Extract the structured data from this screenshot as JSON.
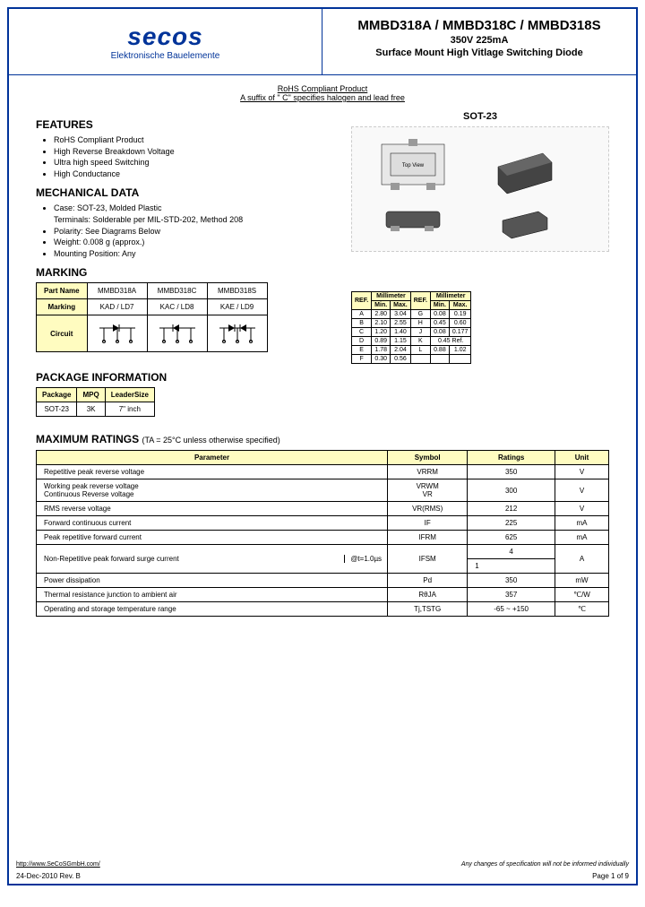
{
  "logo": {
    "name": "secos",
    "sub": "Elektronische Bauelemente"
  },
  "title": {
    "main": "MMBD318A / MMBD318C / MMBD318S",
    "sub1": "350V 225mA",
    "sub2": "Surface Mount High Vitlage Switching Diode"
  },
  "rohs": {
    "line1": "RoHS Compliant Product",
    "line2": "A suffix of \" C\" specifies halogen and lead free"
  },
  "features": {
    "title": "FEATURES",
    "items": [
      "RoHS Compliant Product",
      "High Reverse Breakdown Voltage",
      "Ultra high speed Switching",
      "High Conductance"
    ]
  },
  "mechanical": {
    "title": "MECHANICAL DATA",
    "items": [
      "Case: SOT-23, Molded Plastic\nTerminals: Solderable per MIL-STD-202, Method 208",
      "Polarity: See Diagrams Below",
      "Weight: 0.008 g (approx.)",
      "Mounting Position: Any"
    ]
  },
  "package_label": "SOT-23",
  "marking": {
    "title": "MARKING",
    "headers": [
      "Part Name",
      "MMBD318A",
      "MMBD318C",
      "MMBD318S"
    ],
    "row_marking": [
      "Marking",
      "KAD / LD7",
      "KAC / LD8",
      "KAE / LD9"
    ],
    "row_circuit": "Circuit"
  },
  "dimensions": {
    "headers": [
      "REF.",
      "Millimeter",
      "REF.",
      "Millimeter"
    ],
    "subheaders": [
      "",
      "Min.",
      "Max.",
      "",
      "Min.",
      "Max."
    ],
    "rows": [
      [
        "A",
        "2.80",
        "3.04",
        "G",
        "0.08",
        "0.19"
      ],
      [
        "B",
        "2.10",
        "2.55",
        "H",
        "0.45",
        "0.60"
      ],
      [
        "C",
        "1.20",
        "1.40",
        "J",
        "0.08",
        "0.177"
      ],
      [
        "D",
        "0.89",
        "1.15",
        "K",
        "0.45 Ref.",
        ""
      ],
      [
        "E",
        "1.78",
        "2.04",
        "L",
        "0.88",
        "1.02"
      ],
      [
        "F",
        "0.30",
        "0.56",
        "",
        "",
        ""
      ]
    ]
  },
  "pkg_info": {
    "title": "PACKAGE INFORMATION",
    "headers": [
      "Package",
      "MPQ",
      "LeaderSize"
    ],
    "rows": [
      [
        "SOT-23",
        "3K",
        "7\" inch"
      ]
    ]
  },
  "ratings": {
    "title": "MAXIMUM RATINGS",
    "note": "(TA = 25°C unless otherwise specified)",
    "headers": [
      "Parameter",
      "Symbol",
      "Ratings",
      "Unit"
    ],
    "rows": [
      {
        "param": "Repetitive peak reverse voltage",
        "symbol": "VRRM",
        "rating": "350",
        "unit": "V",
        "rowspan": 1
      },
      {
        "param": "Working peak reverse voltage\nContinuous Reverse voltage",
        "symbol": "VRWM\nVR",
        "rating": "300",
        "unit": "V",
        "rowspan": 1
      },
      {
        "param": "RMS reverse voltage",
        "symbol": "VR(RMS)",
        "rating": "212",
        "unit": "V",
        "rowspan": 1
      },
      {
        "param": "Forward continuous current",
        "symbol": "IF",
        "rating": "225",
        "unit": "mA",
        "rowspan": 1
      },
      {
        "param": "Peak repetitive forward current",
        "symbol": "IFRM",
        "rating": "625",
        "unit": "mA",
        "rowspan": 1
      }
    ],
    "surge": {
      "param": "Non-Repetitive peak forward surge current",
      "cond1": "@t=1.0µs",
      "val1": "4",
      "cond2": "@t=1.0s",
      "val2": "1",
      "symbol": "IFSM",
      "unit": "A"
    },
    "rows2": [
      {
        "param": "Power dissipation",
        "symbol": "Pd",
        "rating": "350",
        "unit": "mW"
      },
      {
        "param": "Thermal resistance junction to ambient air",
        "symbol": "RθJA",
        "rating": "357",
        "unit": "℃/W"
      },
      {
        "param": "Operating and storage temperature range",
        "symbol": "Tj,TSTG",
        "rating": "-65 ~ +150",
        "unit": "℃"
      }
    ]
  },
  "footer": {
    "link": "http://www.SeCoSGmbH.com/",
    "note": "Any changes of specification will not be informed individually",
    "date": "24-Dec-2010 Rev. B",
    "page": "Page 1  of  9"
  },
  "colors": {
    "border": "#003399",
    "header_bg": "#fffcc0"
  }
}
